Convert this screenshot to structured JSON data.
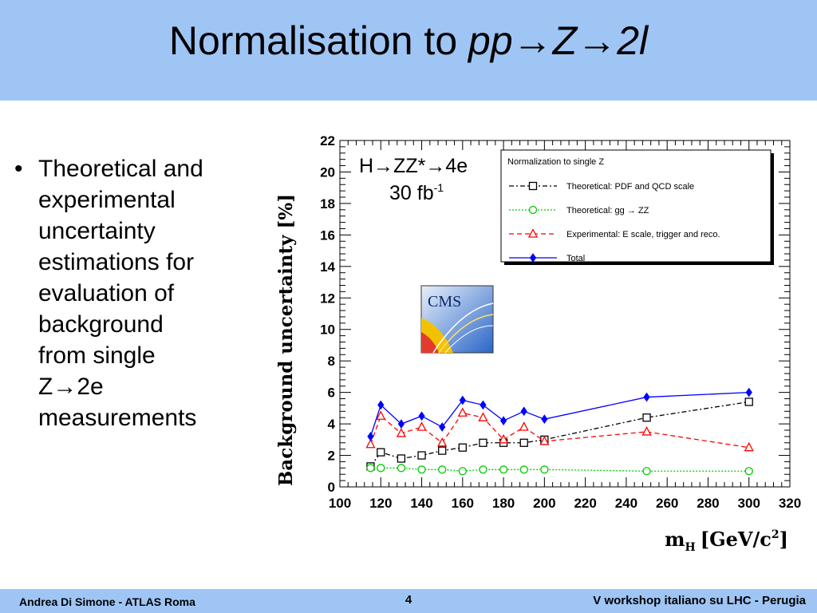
{
  "slide": {
    "title_prefix": "Normalisation to ",
    "title_formula": "pp→Z→2l",
    "bullet_lines": [
      "Theoretical and",
      "experimental",
      "uncertainty",
      "estimations for",
      "evaluation of",
      "background",
      "from single",
      "Z→2e",
      "measurements"
    ],
    "footer_left": "Andrea Di Simone - ATLAS Roma",
    "page_number": "4",
    "footer_right": "V workshop italiano su LHC - Perugia",
    "logo_text": "CMS"
  },
  "chart_data": {
    "type": "line",
    "ylabel": "Background uncertainty [%]",
    "xlabel": "m",
    "xlabel_sub": "H",
    "xlabel_unit": "[GeV/c",
    "xlabel_sup": "2",
    "xlabel_end": "]",
    "xlim": [
      100,
      320
    ],
    "ylim": [
      0,
      22
    ],
    "x_ticks": [
      100,
      120,
      140,
      160,
      180,
      200,
      220,
      240,
      260,
      280,
      300,
      320
    ],
    "y_ticks": [
      0,
      2,
      4,
      6,
      8,
      10,
      12,
      14,
      16,
      18,
      20,
      22
    ],
    "annotation_channel": "H→ZZ*→4e",
    "annotation_lumi": "30 fb",
    "annotation_lumi_sup": "-1",
    "legend_title": "Normalization to single Z",
    "legend_position": "top-right",
    "series": [
      {
        "name": "Theoretical: PDF and QCD scale",
        "color": "#000000",
        "marker": "square",
        "dash": "dash-dot",
        "x": [
          115,
          120,
          130,
          140,
          150,
          160,
          170,
          180,
          190,
          200,
          250,
          300
        ],
        "y": [
          1.3,
          2.2,
          1.8,
          2.0,
          2.3,
          2.5,
          2.8,
          2.8,
          2.8,
          3.0,
          4.4,
          5.4
        ]
      },
      {
        "name": "Theoretical: gg → ZZ",
        "color": "#00cc00",
        "marker": "circle",
        "dash": "dotted",
        "x": [
          115,
          120,
          130,
          140,
          150,
          160,
          170,
          180,
          190,
          200,
          250,
          300
        ],
        "y": [
          1.2,
          1.2,
          1.2,
          1.1,
          1.1,
          1.0,
          1.1,
          1.1,
          1.1,
          1.1,
          1.0,
          1.0
        ]
      },
      {
        "name": "Experimental: E scale, trigger and reco.",
        "color": "#ff0000",
        "marker": "triangle",
        "dash": "dashed",
        "x": [
          115,
          120,
          130,
          140,
          150,
          160,
          170,
          180,
          190,
          200,
          250,
          300
        ],
        "y": [
          2.7,
          4.5,
          3.4,
          3.8,
          2.8,
          4.7,
          4.4,
          3.0,
          3.8,
          2.9,
          3.5,
          2.5
        ]
      },
      {
        "name": "Total",
        "color": "#0000ff",
        "marker": "diamond",
        "dash": "solid",
        "x": [
          115,
          120,
          130,
          140,
          150,
          160,
          170,
          180,
          190,
          200,
          250,
          300
        ],
        "y": [
          3.2,
          5.2,
          4.0,
          4.5,
          3.8,
          5.5,
          5.2,
          4.2,
          4.8,
          4.3,
          5.7,
          6.0
        ]
      }
    ]
  }
}
